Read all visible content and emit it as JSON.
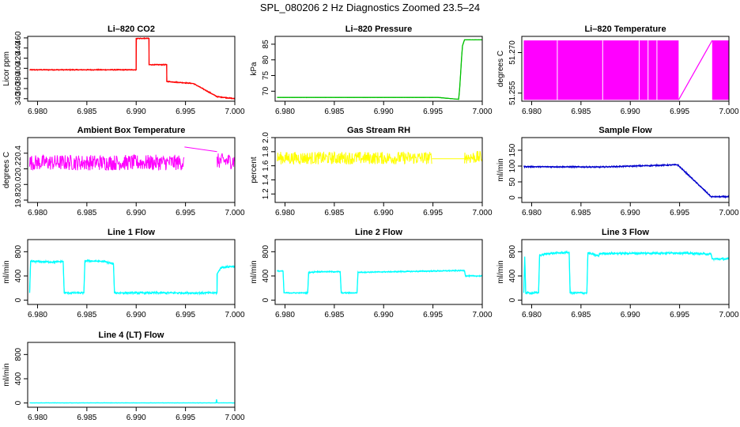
{
  "figure": {
    "title": "SPL_080206  2 Hz Diagnostics Zoomed 23.5–24"
  },
  "chart_data": [
    {
      "type": "line",
      "title": "Li–820 CO2",
      "ylabel": "Licor ppm",
      "color": "#ff0000",
      "xlim": [
        6.979,
        7.0
      ],
      "ylim": [
        335,
        463
      ],
      "x_ticks": [
        "6.980",
        "6.985",
        "6.990",
        "6.995",
        "7.000"
      ],
      "y_ticks": [
        340,
        360,
        380,
        400,
        420,
        440,
        460
      ],
      "y_tick_labels": [
        "340",
        "360",
        "380",
        "400",
        "420",
        "440",
        "460"
      ],
      "noise": 1.2,
      "x": [
        6.9792,
        6.99,
        6.99,
        6.9913,
        6.9913,
        6.9931,
        6.9931,
        6.9958,
        6.9982,
        7.0
      ],
      "y": [
        397,
        397,
        459,
        459,
        407,
        407,
        374,
        370,
        344,
        340
      ]
    },
    {
      "type": "line",
      "title": "Li–820 Pressure",
      "ylabel": "kPa",
      "color": "#00c000",
      "xlim": [
        6.979,
        7.0
      ],
      "ylim": [
        66.8,
        87.5
      ],
      "x_ticks": [
        "6.980",
        "6.985",
        "6.990",
        "6.995",
        "7.000"
      ],
      "y_ticks": [
        70,
        75,
        80,
        85
      ],
      "y_tick_labels": [
        "70",
        "75",
        "80",
        "85"
      ],
      "noise": 0.06,
      "x": [
        6.9792,
        6.9955,
        6.9976,
        6.9977,
        6.9978,
        6.9979,
        6.998,
        6.9982,
        7.0
      ],
      "y": [
        68.0,
        68.0,
        67.4,
        70.5,
        75.5,
        80.5,
        84.5,
        86.4,
        86.4
      ]
    },
    {
      "type": "band",
      "title": "Li–820 Temperature",
      "ylabel": "degrees C",
      "color": "#ff00ff",
      "xlim": [
        6.979,
        7.0
      ],
      "ylim": [
        51.252,
        51.276
      ],
      "x_ticks": [
        "6.980",
        "6.985",
        "6.990",
        "6.995",
        "7.000"
      ],
      "y_ticks": [
        51.255,
        51.27
      ],
      "y_tick_labels": [
        "51.255",
        "51.270"
      ],
      "band_ranges": [
        [
          6.9792,
          6.9949
        ],
        [
          6.9983,
          7.0
        ]
      ],
      "band_low": 51.2525,
      "band_high": 51.2745,
      "noise": 0,
      "x": [
        6.9949,
        6.9983
      ],
      "y": [
        51.2525,
        51.2745
      ]
    },
    {
      "type": "line",
      "title": "Ambient Box Temperature",
      "ylabel": "degrees C",
      "color": "#ff00ff",
      "xlim": [
        6.979,
        7.0
      ],
      "ylim": [
        19.77,
        20.6
      ],
      "x_ticks": [
        "6.980",
        "6.985",
        "6.990",
        "6.995",
        "7.000"
      ],
      "y_ticks": [
        19.8,
        20.0,
        20.2,
        20.4
      ],
      "y_tick_labels": [
        "19.8",
        "20.0",
        "20.2",
        "20.4"
      ],
      "noise": 0.1,
      "gaps": [
        [
          6.9949,
          6.9982
        ]
      ],
      "gap_x": [
        6.9949,
        6.9982
      ],
      "gap_y": [
        20.48,
        20.42
      ],
      "x": [
        6.9792,
        6.9949,
        6.9982,
        7.0
      ],
      "y": [
        20.28,
        20.28,
        20.3,
        20.3
      ]
    },
    {
      "type": "line",
      "title": "Gas Stream RH",
      "ylabel": "percent",
      "color": "#ffff00",
      "xlim": [
        6.979,
        7.0
      ],
      "ylim": [
        1.08,
        2.0
      ],
      "x_ticks": [
        "6.980",
        "6.985",
        "6.990",
        "6.995",
        "7.000"
      ],
      "y_ticks": [
        1.2,
        1.4,
        1.6,
        1.8,
        2.0
      ],
      "y_tick_labels": [
        "1.2",
        "1.4",
        "1.6",
        "1.8",
        "2.0"
      ],
      "noise": 0.09,
      "gaps": [
        [
          6.9949,
          6.9982
        ]
      ],
      "gap_x": [
        6.9949,
        6.9982
      ],
      "gap_y": [
        1.7,
        1.7
      ],
      "x": [
        6.9792,
        6.9949,
        6.9982,
        7.0
      ],
      "y": [
        1.71,
        1.71,
        1.72,
        1.72
      ]
    },
    {
      "type": "line",
      "title": "Sample Flow",
      "ylabel": "ml/min",
      "color": "#0000cc",
      "xlim": [
        6.979,
        7.0
      ],
      "ylim": [
        -15,
        190
      ],
      "x_ticks": [
        "6.980",
        "6.985",
        "6.990",
        "6.995",
        "7.000"
      ],
      "y_ticks": [
        0,
        50,
        100,
        150
      ],
      "y_tick_labels": [
        "0",
        "50",
        "100",
        "150"
      ],
      "noise": 2.5,
      "x": [
        6.9792,
        6.987,
        6.9948,
        6.9982,
        7.0
      ],
      "y": [
        98,
        97,
        104,
        3,
        3
      ]
    },
    {
      "type": "line",
      "title": "Line 1 Flow",
      "ylabel": "ml/min",
      "color": "#00ffff",
      "xlim": [
        6.979,
        7.0
      ],
      "ylim": [
        -70,
        1000
      ],
      "x_ticks": [
        "6.980",
        "6.985",
        "6.990",
        "6.995",
        "7.000"
      ],
      "y_ticks": [
        0,
        400,
        800
      ],
      "y_tick_labels": [
        "0",
        "400",
        "800"
      ],
      "noise": 20,
      "x": [
        6.9792,
        6.9793,
        6.9817,
        6.9826,
        6.9827,
        6.9847,
        6.9848,
        6.9867,
        6.9877,
        6.9878,
        6.9982,
        6.9982,
        6.9986,
        7.0
      ],
      "y": [
        120,
        640,
        630,
        640,
        120,
        120,
        650,
        640,
        600,
        120,
        120,
        430,
        540,
        560
      ]
    },
    {
      "type": "line",
      "title": "Line 2 Flow",
      "ylabel": "ml/min",
      "color": "#00ffff",
      "xlim": [
        6.979,
        7.0
      ],
      "ylim": [
        -70,
        1000
      ],
      "x_ticks": [
        "6.980",
        "6.985",
        "6.990",
        "6.995",
        "7.000"
      ],
      "y_ticks": [
        0,
        400,
        800
      ],
      "y_tick_labels": [
        "0",
        "400",
        "800"
      ],
      "noise": 12,
      "x": [
        6.9792,
        6.9798,
        6.9799,
        6.9823,
        6.9824,
        6.9829,
        6.983,
        6.9856,
        6.9857,
        6.9873,
        6.9874,
        6.9982,
        6.9983,
        7.0
      ],
      "y": [
        480,
        480,
        120,
        120,
        460,
        460,
        470,
        470,
        120,
        120,
        460,
        490,
        400,
        400
      ]
    },
    {
      "type": "line",
      "title": "Line 3 Flow",
      "ylabel": "ml/min",
      "color": "#00ffff",
      "xlim": [
        6.979,
        7.0
      ],
      "ylim": [
        -70,
        1000
      ],
      "x_ticks": [
        "6.980",
        "6.985",
        "6.990",
        "6.995",
        "7.000"
      ],
      "y_ticks": [
        0,
        400,
        800
      ],
      "y_tick_labels": [
        "0",
        "400",
        "800"
      ],
      "noise": 22,
      "x": [
        6.9792,
        6.9793,
        6.9794,
        6.9807,
        6.9808,
        6.9817,
        6.9838,
        6.9839,
        6.9856,
        6.9857,
        6.9868,
        6.9869,
        6.9949,
        6.9982,
        6.9983,
        7.0
      ],
      "y": [
        120,
        720,
        120,
        120,
        740,
        770,
        790,
        120,
        120,
        780,
        730,
        770,
        780,
        760,
        680,
        680
      ]
    },
    {
      "type": "line",
      "title": "Line 4 (LT) Flow",
      "ylabel": "ml/min",
      "color": "#00ffff",
      "xlim": [
        6.979,
        7.0
      ],
      "ylim": [
        -70,
        1000
      ],
      "x_ticks": [
        "6.980",
        "6.985",
        "6.990",
        "6.995",
        "7.000"
      ],
      "y_ticks": [
        0,
        400,
        800
      ],
      "y_tick_labels": [
        "0",
        "400",
        "800"
      ],
      "noise": 3,
      "x": [
        6.9792,
        6.9981,
        6.99815,
        6.9982,
        6.99825,
        7.0
      ],
      "y": [
        2,
        2,
        60,
        10,
        2,
        2
      ]
    }
  ]
}
